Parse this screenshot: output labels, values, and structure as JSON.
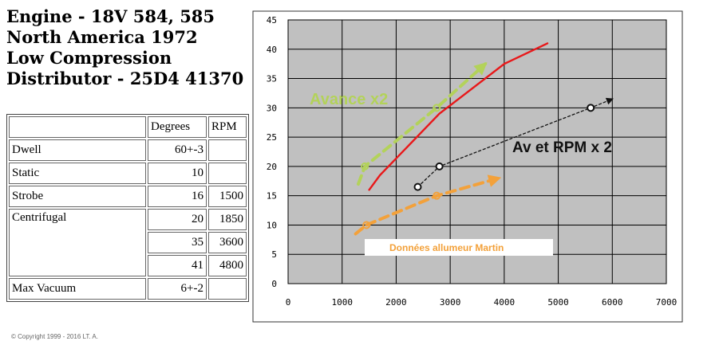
{
  "heading": {
    "lines": [
      "Engine - 18V 584, 585",
      "North America 1972",
      "Low Compression",
      "Distributor - 25D4 41370"
    ]
  },
  "table": {
    "headers": [
      "",
      "Degrees",
      "RPM"
    ],
    "rows": [
      {
        "label": "Dwell",
        "degrees": "60+-3",
        "rpm": ""
      },
      {
        "label": "Static",
        "degrees": "10",
        "rpm": ""
      },
      {
        "label": "Strobe",
        "degrees": "16",
        "rpm": "1500"
      },
      {
        "label": "Centrifugal",
        "degrees": "20",
        "rpm": "1850"
      },
      {
        "label": "",
        "degrees": "35",
        "rpm": "3600"
      },
      {
        "label": "",
        "degrees": "41",
        "rpm": "4800"
      },
      {
        "label": "Max Vacuum",
        "degrees": "6+-2",
        "rpm": ""
      }
    ]
  },
  "copyright": "© Copyright 1999 - 2016 LT. A.",
  "chart_data": {
    "type": "line",
    "xlim": [
      0,
      7000
    ],
    "ylim": [
      0,
      45
    ],
    "xticks": [
      0,
      1000,
      2000,
      3000,
      4000,
      5000,
      6000,
      7000
    ],
    "yticks": [
      0,
      5,
      10,
      15,
      20,
      25,
      30,
      35,
      40,
      45
    ],
    "grid": true,
    "series": [
      {
        "color": "#e8181a",
        "style": "solid",
        "x": [
          1500,
          1700,
          2800,
          4000,
          4800
        ],
        "y": [
          16,
          18.5,
          29,
          37.5,
          41
        ]
      },
      {
        "name": "Avance x2",
        "color": "#b3d25a",
        "style": "dashed",
        "x": [
          1300,
          1420,
          2750,
          3650
        ],
        "y": [
          17,
          20,
          30,
          37.5
        ]
      },
      {
        "name": "Av et RPM  x 2",
        "color": "#111111",
        "style": "dotted",
        "x": [
          2400,
          2800,
          5600,
          6000
        ],
        "y": [
          16.5,
          20,
          30,
          31.5
        ]
      },
      {
        "name": "Données allumeur  Martin",
        "color": "#f3a13a",
        "style": "dashed",
        "x": [
          1250,
          1450,
          2750,
          3900
        ],
        "y": [
          8.5,
          10,
          15,
          18
        ]
      }
    ],
    "annotations": [
      {
        "text": "Avance x2",
        "color": "#b3d25a"
      },
      {
        "text": "Av et RPM  x 2",
        "color": "#111111"
      },
      {
        "text": "Données allumeur  Martin",
        "color": "#f3a13a"
      }
    ]
  }
}
